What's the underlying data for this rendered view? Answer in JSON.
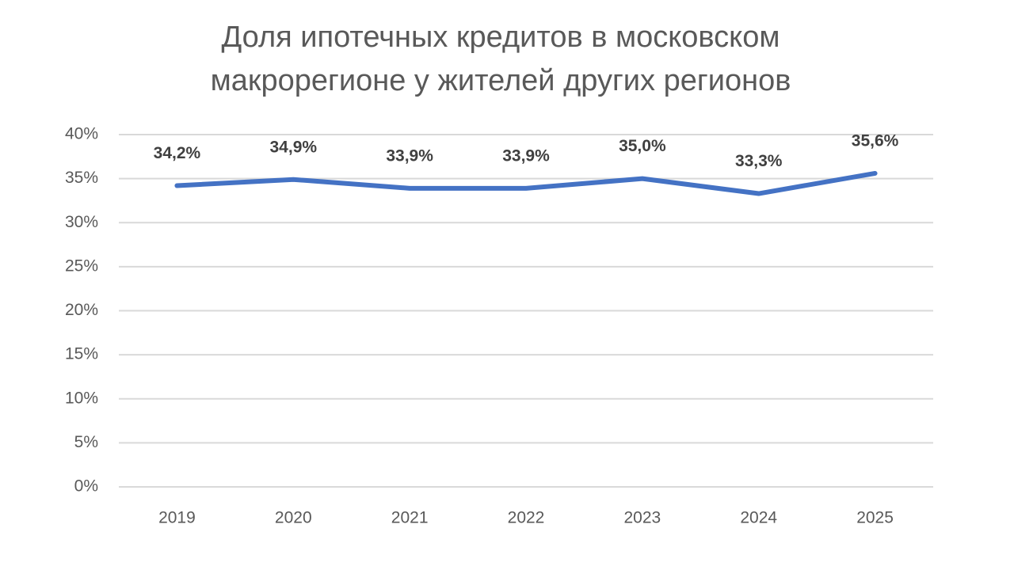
{
  "chart_data": {
    "type": "line",
    "title": [
      "Доля ипотечных кредитов в московском",
      "макрорегионе у жителей других регионов"
    ],
    "categories": [
      "2019",
      "2020",
      "2021",
      "2022",
      "2023",
      "2024",
      "2025"
    ],
    "series": [
      {
        "color": "#4472c4",
        "values": [
          34.2,
          34.9,
          33.9,
          33.9,
          35.0,
          33.3,
          35.6
        ],
        "value_labels": [
          "34,2%",
          "34,9%",
          "33,9%",
          "33,9%",
          "35,0%",
          "33,3%",
          "35,6%"
        ]
      }
    ],
    "ylim": [
      0,
      40
    ],
    "yticks": [
      {
        "value": 0,
        "label": "0%"
      },
      {
        "value": 5,
        "label": "5%"
      },
      {
        "value": 10,
        "label": "10%"
      },
      {
        "value": 15,
        "label": "15%"
      },
      {
        "value": 20,
        "label": "20%"
      },
      {
        "value": 25,
        "label": "25%"
      },
      {
        "value": 30,
        "label": "30%"
      },
      {
        "value": 35,
        "label": "35%"
      },
      {
        "value": 40,
        "label": "40%"
      }
    ],
    "grid": true
  }
}
